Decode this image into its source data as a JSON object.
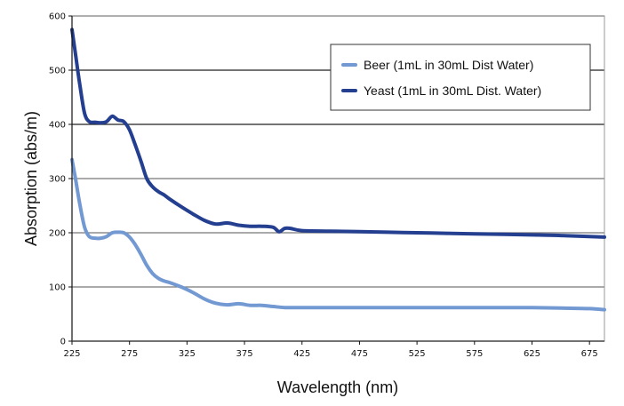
{
  "chart_data": {
    "type": "line",
    "title": "",
    "xlabel": "Wavelength (nm)",
    "ylabel": "Absorption (abs/m)",
    "xlim": [
      225,
      688
    ],
    "ylim": [
      0,
      600
    ],
    "x_ticks": [
      225,
      275,
      325,
      375,
      425,
      475,
      525,
      575,
      625,
      675
    ],
    "x_tick_labels": [
      "225",
      "275",
      "325",
      "375",
      "425",
      "475",
      "525",
      "575",
      "625",
      "675"
    ],
    "y_ticks": [
      0,
      100,
      200,
      300,
      400,
      500,
      600
    ],
    "y_tick_labels": [
      "0",
      "100",
      "200",
      "300",
      "400",
      "500",
      "600"
    ],
    "grid": "horizontal",
    "legend": "top-right",
    "series": [
      {
        "name": "Beer (1mL in 30mL Dist Water)",
        "color": "#7399d3",
        "x": [
          225,
          228,
          232,
          236,
          240,
          245,
          250,
          255,
          260,
          265,
          270,
          275,
          280,
          285,
          290,
          295,
          300,
          305,
          310,
          320,
          330,
          340,
          350,
          360,
          370,
          380,
          390,
          400,
          410,
          425,
          450,
          475,
          500,
          525,
          550,
          575,
          600,
          625,
          650,
          675,
          688
        ],
        "values": [
          335,
          300,
          250,
          210,
          193,
          190,
          190,
          193,
          200,
          201,
          200,
          192,
          178,
          160,
          140,
          125,
          116,
          111,
          108,
          100,
          90,
          78,
          70,
          67,
          69,
          66,
          66,
          64,
          62,
          62,
          62,
          62,
          62,
          62,
          62,
          62,
          62,
          62,
          61,
          60,
          58
        ]
      },
      {
        "name": "Yeast (1mL in 30mL Dist. Water)",
        "color": "#243f8f",
        "x": [
          225,
          228,
          232,
          236,
          240,
          245,
          250,
          255,
          260,
          265,
          270,
          275,
          280,
          285,
          290,
          295,
          300,
          305,
          310,
          320,
          330,
          340,
          350,
          360,
          370,
          380,
          390,
          400,
          405,
          410,
          415,
          425,
          450,
          475,
          500,
          525,
          550,
          575,
          600,
          625,
          650,
          675,
          688
        ],
        "values": [
          575,
          530,
          470,
          420,
          405,
          404,
          403,
          405,
          415,
          408,
          405,
          390,
          362,
          332,
          300,
          285,
          276,
          270,
          262,
          248,
          235,
          223,
          216,
          218,
          214,
          212,
          212,
          210,
          202,
          208,
          208,
          204,
          203,
          202,
          201,
          200,
          199,
          198,
          197,
          196,
          195,
          193,
          192
        ]
      }
    ]
  }
}
